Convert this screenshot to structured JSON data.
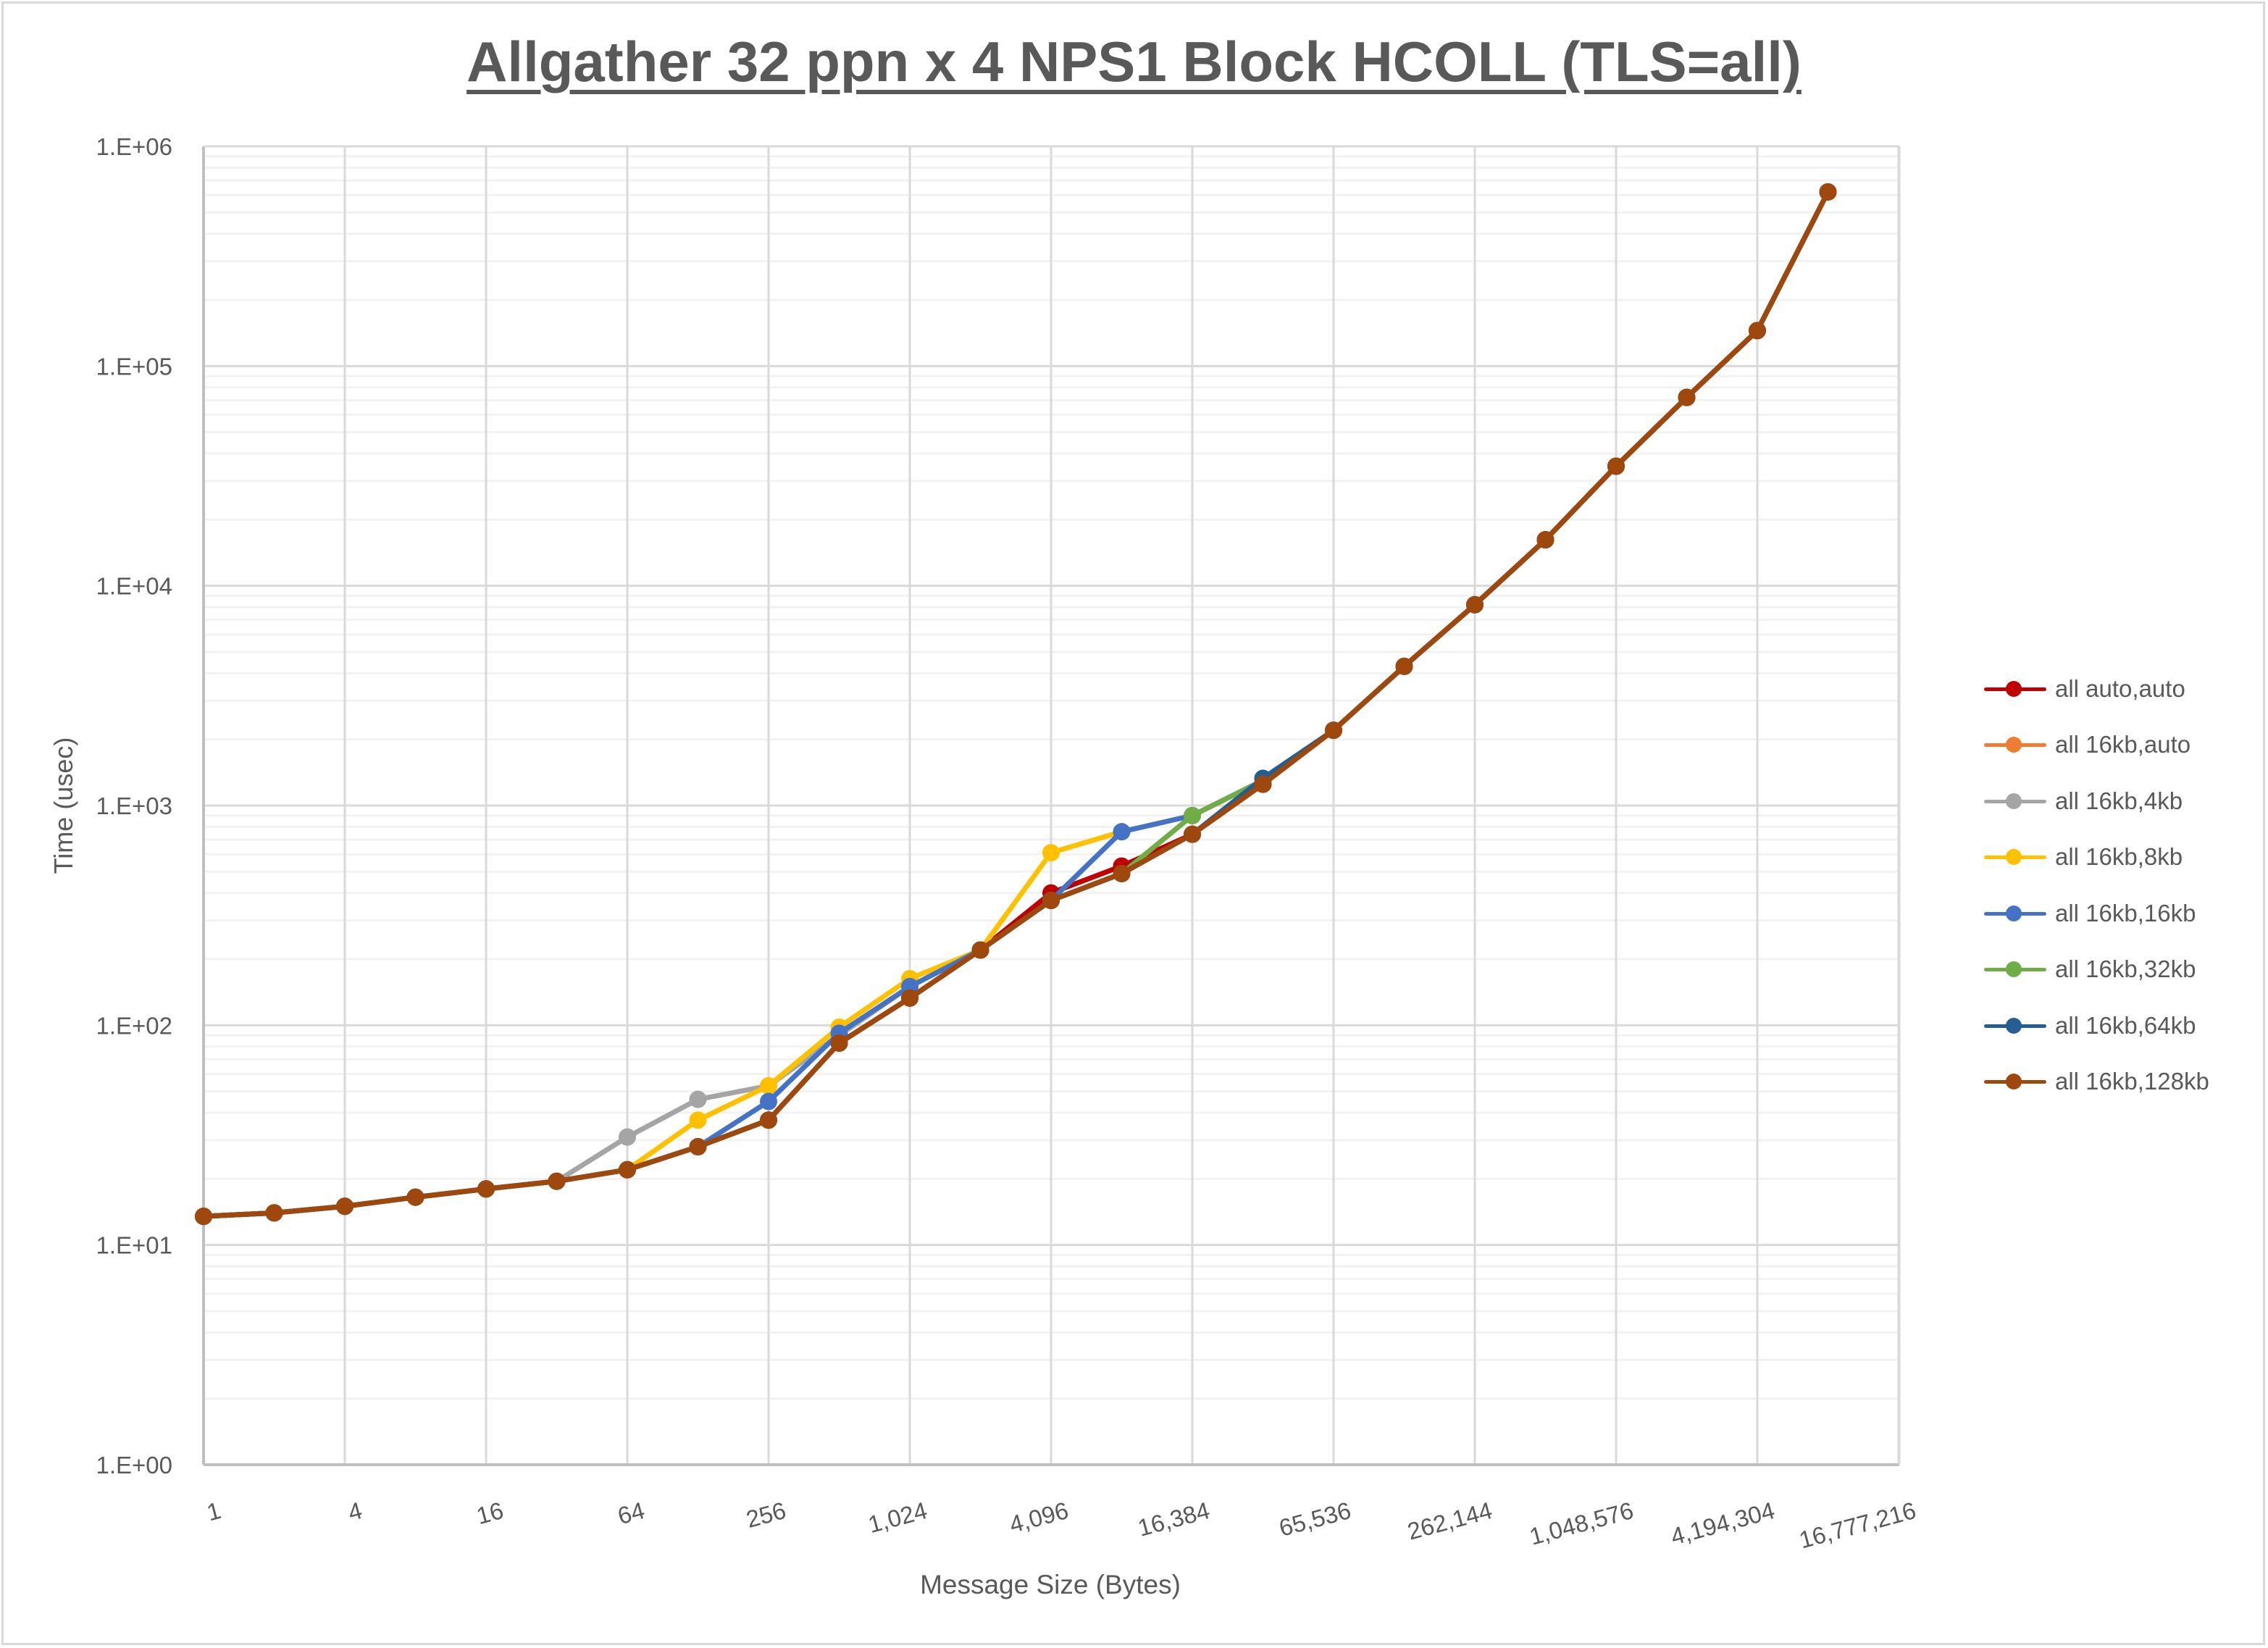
{
  "title": "Allgather 32 ppn x 4 NPS1 Block HCOLL (TLS=all)",
  "axes": {
    "x_label": "Message Size (Bytes)",
    "y_label": "Time (usec)",
    "x_ticks": [
      "1",
      "4",
      "16",
      "64",
      "256",
      "1,024",
      "4,096",
      "16,384",
      "65,536",
      "262,144",
      "1,048,576",
      "4,194,304",
      "16,777,216"
    ],
    "y_ticks": [
      "1.E+00",
      "1.E+01",
      "1.E+02",
      "1.E+03",
      "1.E+04",
      "1.E+05",
      "1.E+06"
    ]
  },
  "legend": [
    {
      "label": "all auto,auto",
      "color": "#c00000"
    },
    {
      "label": "all 16kb,auto",
      "color": "#ed7d31"
    },
    {
      "label": "all 16kb,4kb",
      "color": "#a5a5a5"
    },
    {
      "label": "all 16kb,8kb",
      "color": "#ffc000"
    },
    {
      "label": "all 16kb,16kb",
      "color": "#4472c4"
    },
    {
      "label": "all 16kb,32kb",
      "color": "#70ad47"
    },
    {
      "label": "all 16kb,64kb",
      "color": "#255e91"
    },
    {
      "label": "all 16kb,128kb",
      "color": "#9e480e"
    }
  ],
  "chart_data": {
    "type": "line",
    "title": "Allgather 32 ppn x 4 NPS1 Block HCOLL (TLS=all)",
    "xlabel": "Message Size (Bytes)",
    "ylabel": "Time (usec)",
    "x_scale": "log2",
    "y_scale": "log10",
    "ylim": [
      1,
      1000000
    ],
    "grid": true,
    "legend_position": "right",
    "x": [
      1,
      2,
      4,
      8,
      16,
      32,
      64,
      128,
      256,
      512,
      1024,
      2048,
      4096,
      8192,
      16384,
      32768,
      65536,
      131072,
      262144,
      524288,
      1048576,
      2097152,
      4194304,
      8388608
    ],
    "series": [
      {
        "name": "all auto,auto",
        "color": "#c00000",
        "values": [
          13.5,
          14,
          15,
          16.5,
          18,
          19.5,
          22,
          28,
          37,
          83,
          133,
          220,
          400,
          530,
          740,
          1250,
          2200,
          4300,
          8200,
          16200,
          35000,
          72000,
          145000,
          620000
        ]
      },
      {
        "name": "all 16kb,auto",
        "color": "#ed7d31",
        "values": [
          13.5,
          14,
          15,
          16.5,
          18,
          19.5,
          22,
          28,
          37,
          83,
          133,
          220,
          370,
          490,
          740,
          1250,
          2200,
          4300,
          8200,
          16200,
          35000,
          72000,
          145000,
          620000
        ]
      },
      {
        "name": "all 16kb,4kb",
        "color": "#a5a5a5",
        "values": [
          13.5,
          14,
          15,
          16.5,
          18,
          19.5,
          31,
          46,
          53,
          90,
          150,
          220,
          370,
          490,
          740,
          1250,
          2200,
          4300,
          8200,
          16200,
          35000,
          72000,
          145000,
          620000
        ]
      },
      {
        "name": "all 16kb,8kb",
        "color": "#ffc000",
        "values": [
          13.5,
          14,
          15,
          16.5,
          18,
          19.5,
          22,
          37,
          53,
          98,
          163,
          220,
          610,
          760,
          900,
          1300,
          2200,
          4300,
          8200,
          16200,
          35000,
          72000,
          145000,
          620000
        ]
      },
      {
        "name": "all 16kb,16kb",
        "color": "#4472c4",
        "values": [
          13.5,
          14,
          15,
          16.5,
          18,
          19.5,
          22,
          28,
          45,
          92,
          150,
          220,
          370,
          760,
          900,
          1300,
          2200,
          4300,
          8200,
          16200,
          35000,
          72000,
          145000,
          620000
        ]
      },
      {
        "name": "all 16kb,32kb",
        "color": "#70ad47",
        "values": [
          13.5,
          14,
          15,
          16.5,
          18,
          19.5,
          22,
          28,
          37,
          83,
          133,
          220,
          370,
          490,
          900,
          1300,
          2200,
          4300,
          8200,
          16200,
          35000,
          72000,
          145000,
          620000
        ]
      },
      {
        "name": "all 16kb,64kb",
        "color": "#255e91",
        "values": [
          13.5,
          14,
          15,
          16.5,
          18,
          19.5,
          22,
          28,
          37,
          83,
          133,
          220,
          370,
          490,
          740,
          1330,
          2200,
          4300,
          8200,
          16200,
          35000,
          72000,
          145000,
          620000
        ]
      },
      {
        "name": "all 16kb,128kb",
        "color": "#9e480e",
        "values": [
          13.5,
          14,
          15,
          16.5,
          18,
          19.5,
          22,
          28,
          37,
          83,
          133,
          220,
          370,
          490,
          740,
          1250,
          2200,
          4300,
          8200,
          16200,
          35000,
          72000,
          145000,
          620000
        ]
      }
    ]
  }
}
